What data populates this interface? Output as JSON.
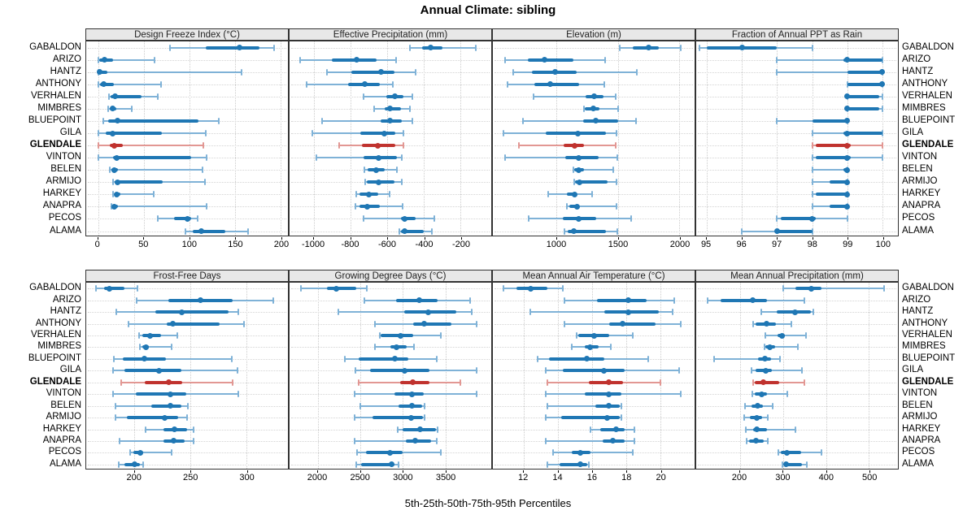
{
  "chart_data": {
    "type": "dot-whisker-trellis",
    "title": "Annual Climate: sibling",
    "caption": "5th-25th-50th-75th-95th Percentiles",
    "percentiles": [
      5,
      25,
      50,
      75,
      95
    ],
    "layout": {
      "rows": 2,
      "cols": 4,
      "grid": "dotted",
      "site_labels": "both-sides"
    },
    "highlight_site": "GLENDALE",
    "sites": [
      "GABALDON",
      "ARIZO",
      "HANTZ",
      "ANTHONY",
      "VERHALEN",
      "MIMBRES",
      "BLUEPOINT",
      "GILA",
      "GLENDALE",
      "VINTON",
      "BELEN",
      "ARMIJO",
      "HARKEY",
      "ANAPRA",
      "PECOS",
      "ALAMA"
    ],
    "colors": {
      "blue": "#1F77B4",
      "blue_light": "#7FB2D7",
      "red": "#C0322E",
      "red_light": "#E29793",
      "header_bg": "#E8E8E8",
      "grid": "#CCCCCC",
      "border": "#333333"
    },
    "panels": [
      {
        "title": "Design Freeze Index (°C)",
        "ticks": [
          0,
          50,
          100,
          150,
          200
        ],
        "domain": [
          -13,
          208
        ],
        "values": {
          "GABALDON": [
            79,
            118,
            155,
            177,
            193
          ],
          "ARIZO": [
            0,
            1,
            7,
            16,
            62
          ],
          "HANTZ": [
            0,
            1,
            2,
            10,
            157
          ],
          "ANTHONY": [
            0,
            2,
            6,
            17,
            69
          ],
          "VERHALEN": [
            12,
            14,
            19,
            48,
            65
          ],
          "MIMBRES": [
            11,
            13,
            16,
            20,
            37
          ],
          "BLUEPOINT": [
            6,
            11,
            21,
            110,
            132
          ],
          "GILA": [
            0,
            8,
            16,
            70,
            118
          ],
          "GLENDALE": [
            0,
            13,
            18,
            27,
            115
          ],
          "VINTON": [
            0,
            16,
            20,
            102,
            119
          ],
          "BELEN": [
            13,
            15,
            18,
            22,
            114
          ],
          "ARMIJO": [
            16,
            18,
            21,
            71,
            117
          ],
          "HARKEY": [
            16,
            18,
            20,
            24,
            61
          ],
          "ANAPRA": [
            15,
            17,
            18,
            22,
            119
          ],
          "PECOS": [
            65,
            83,
            98,
            102,
            109
          ],
          "ALAMA": [
            96,
            104,
            113,
            139,
            164
          ]
        }
      },
      {
        "title": "Effective Precipitation (mm)",
        "ticks": [
          -1000,
          -800,
          -600,
          -400,
          -200
        ],
        "domain": [
          -1132,
          -33
        ],
        "values": {
          "GABALDON": [
            -475,
            -409,
            -361,
            -300,
            -116
          ],
          "ARIZO": [
            -1075,
            -900,
            -765,
            -660,
            -550
          ],
          "HANTZ": [
            -930,
            -794,
            -632,
            -562,
            -444
          ],
          "ANTHONY": [
            -1039,
            -812,
            -720,
            -641,
            -571
          ],
          "VERHALEN": [
            -729,
            -606,
            -558,
            -510,
            -462
          ],
          "MIMBRES": [
            -672,
            -615,
            -584,
            -527,
            -475
          ],
          "BLUEPOINT": [
            -956,
            -637,
            -584,
            -519,
            -462
          ],
          "GILA": [
            -1009,
            -746,
            -615,
            -554,
            -510
          ],
          "GLENDALE": [
            -860,
            -737,
            -650,
            -554,
            -510
          ],
          "VINTON": [
            -987,
            -729,
            -645,
            -545,
            -519
          ],
          "BELEN": [
            -724,
            -707,
            -659,
            -615,
            -545
          ],
          "ARMIJO": [
            -720,
            -711,
            -645,
            -562,
            -519
          ],
          "HARKEY": [
            -768,
            -751,
            -702,
            -650,
            -589
          ],
          "ANAPRA": [
            -772,
            -751,
            -707,
            -641,
            -514
          ],
          "PECOS": [
            -729,
            -527,
            -505,
            -444,
            -344
          ],
          "ALAMA": [
            -532,
            -527,
            -505,
            -400,
            -357
          ]
        }
      },
      {
        "title": "Elevation (m)",
        "ticks": [
          1000,
          1500,
          2000
        ],
        "domain": [
          480,
          2125
        ],
        "values": {
          "GABALDON": [
            1513,
            1618,
            1750,
            1836,
            2013
          ],
          "ARIZO": [
            579,
            763,
            901,
            1138,
            1395
          ],
          "HANTZ": [
            645,
            796,
            987,
            1164,
            1651
          ],
          "ANTHONY": [
            599,
            816,
            947,
            1184,
            1388
          ],
          "VERHALEN": [
            809,
            1237,
            1309,
            1382,
            1480
          ],
          "MIMBRES": [
            1224,
            1230,
            1296,
            1349,
            1500
          ],
          "BLUEPOINT": [
            724,
            1217,
            1316,
            1500,
            1645
          ],
          "GILA": [
            566,
            908,
            1171,
            1401,
            1487
          ],
          "GLENDALE": [
            691,
            1059,
            1145,
            1224,
            1480
          ],
          "VINTON": [
            579,
            1072,
            1178,
            1342,
            1493
          ],
          "BELEN": [
            1138,
            1145,
            1178,
            1224,
            1461
          ],
          "ARMIJO": [
            1145,
            1151,
            1184,
            1414,
            1487
          ],
          "HARKEY": [
            928,
            1086,
            1145,
            1164,
            1290
          ],
          "ANAPRA": [
            1086,
            1105,
            1164,
            1178,
            1487
          ],
          "PECOS": [
            770,
            1053,
            1178,
            1322,
            1605
          ],
          "ALAMA": [
            1066,
            1092,
            1138,
            1401,
            1493
          ]
        }
      },
      {
        "title": "Fraction of Annual PPT as Rain",
        "ticks": [
          95,
          96,
          97,
          98,
          99,
          100
        ],
        "domain": [
          94.7,
          100.44
        ],
        "values": {
          "GABALDON": [
            94.8,
            95.0,
            96.0,
            97.0,
            98.0
          ],
          "ARIZO": [
            97.0,
            98.9,
            99.0,
            100.0,
            100.0
          ],
          "HANTZ": [
            97.0,
            99.0,
            100.0,
            100.0,
            100.0
          ],
          "ANTHONY": [
            99.0,
            99.0,
            100.0,
            100.0,
            100.0
          ],
          "VERHALEN": [
            99.0,
            99.0,
            99.0,
            99.9,
            100.0
          ],
          "MIMBRES": [
            99.0,
            99.0,
            99.0,
            99.9,
            100.0
          ],
          "BLUEPOINT": [
            97.0,
            98.0,
            99.0,
            99.0,
            99.0
          ],
          "GILA": [
            98.0,
            98.9,
            99.0,
            100.0,
            100.0
          ],
          "GLENDALE": [
            98.0,
            98.1,
            99.0,
            99.1,
            100.0
          ],
          "VINTON": [
            98.0,
            98.1,
            99.0,
            99.1,
            100.0
          ],
          "BELEN": [
            98.0,
            98.9,
            99.0,
            99.0,
            99.0
          ],
          "ARMIJO": [
            98.0,
            98.5,
            99.0,
            99.0,
            99.0
          ],
          "HARKEY": [
            98.0,
            98.1,
            99.0,
            99.0,
            99.0
          ],
          "ANAPRA": [
            98.0,
            98.5,
            99.0,
            99.0,
            99.0
          ],
          "PECOS": [
            97.0,
            97.1,
            98.0,
            98.1,
            99.0
          ],
          "ALAMA": [
            96.0,
            97.0,
            97.0,
            98.0,
            98.0
          ]
        }
      },
      {
        "title": "Frost-Free Days",
        "ticks": [
          200,
          250,
          300
        ],
        "domain": [
          157,
          337
        ],
        "values": {
          "GABALDON": [
            166,
            173,
            178,
            191,
            203
          ],
          "ARIZO": [
            202,
            230,
            259,
            288,
            324
          ],
          "HANTZ": [
            184,
            219,
            242,
            284,
            293
          ],
          "ANTHONY": [
            195,
            229,
            234,
            276,
            298
          ],
          "VERHALEN": [
            204,
            207,
            214,
            224,
            238
          ],
          "MIMBRES": [
            205,
            207,
            210,
            213,
            233
          ],
          "BLUEPOINT": [
            182,
            190,
            209,
            228,
            287
          ],
          "GILA": [
            181,
            191,
            222,
            242,
            292
          ],
          "GLENDALE": [
            188,
            209,
            231,
            243,
            288
          ],
          "VINTON": [
            181,
            201,
            232,
            246,
            293
          ],
          "BELEN": [
            183,
            215,
            232,
            242,
            248
          ],
          "ARMIJO": [
            183,
            193,
            227,
            239,
            247
          ],
          "HARKEY": [
            210,
            226,
            236,
            247,
            253
          ],
          "ANAPRA": [
            187,
            226,
            235,
            245,
            253
          ],
          "PECOS": [
            196,
            199,
            205,
            208,
            233
          ],
          "ALAMA": [
            186,
            191,
            200,
            205,
            208
          ]
        }
      },
      {
        "title": "Growing Degree Days (°C)",
        "ticks": [
          2000,
          2500,
          3000,
          3500
        ],
        "domain": [
          1668,
          4040
        ],
        "values": {
          "GABALDON": [
            1800,
            2105,
            2220,
            2455,
            2580
          ],
          "ARIZO": [
            2550,
            2920,
            3195,
            3405,
            3795
          ],
          "HANTZ": [
            2240,
            3015,
            3300,
            3630,
            3810
          ],
          "ANTHONY": [
            2675,
            3120,
            3250,
            3575,
            3870
          ],
          "VERHALEN": [
            2730,
            2740,
            2975,
            3120,
            3450
          ],
          "MIMBRES": [
            2675,
            2855,
            2930,
            3050,
            3130
          ],
          "BLUEPOINT": [
            2315,
            2485,
            2910,
            3060,
            3395
          ],
          "GILA": [
            2445,
            2615,
            3025,
            3310,
            3870
          ],
          "GLENDALE": [
            2480,
            2970,
            3120,
            3310,
            3680
          ],
          "VINTON": [
            2430,
            2900,
            3110,
            3250,
            3870
          ],
          "BELEN": [
            2500,
            2950,
            3110,
            3230,
            3255
          ],
          "ARMIJO": [
            2430,
            2645,
            3100,
            3240,
            3255
          ],
          "HARKEY": [
            2940,
            3000,
            3200,
            3385,
            3405
          ],
          "ANAPRA": [
            2430,
            3040,
            3150,
            3330,
            3400
          ],
          "PECOS": [
            2460,
            2570,
            2850,
            3000,
            3450
          ],
          "ALAMA": [
            2455,
            2505,
            2870,
            2905,
            2950
          ]
        }
      },
      {
        "title": "Mean Annual Air Temperature (°C)",
        "ticks": [
          12,
          14,
          16,
          18,
          20
        ],
        "domain": [
          10.2,
          22.0
        ],
        "values": {
          "GABALDON": [
            10.8,
            11.6,
            12.4,
            13.4,
            14.3
          ],
          "ARIZO": [
            14.4,
            16.3,
            18.1,
            19.2,
            20.8
          ],
          "HANTZ": [
            12.4,
            16.7,
            18.1,
            19.9,
            20.7
          ],
          "ANTHONY": [
            14.4,
            17.0,
            17.8,
            19.7,
            21.2
          ],
          "VERHALEN": [
            15.1,
            15.2,
            16.1,
            17.0,
            18.4
          ],
          "MIMBRES": [
            14.8,
            15.6,
            15.9,
            16.4,
            17.1
          ],
          "BLUEPOINT": [
            12.8,
            13.5,
            15.7,
            16.7,
            19.3
          ],
          "GILA": [
            13.3,
            14.3,
            16.7,
            17.9,
            21.1
          ],
          "GLENDALE": [
            13.4,
            15.8,
            17.0,
            17.8,
            20.0
          ],
          "VINTON": [
            13.3,
            15.6,
            17.0,
            17.7,
            21.2
          ],
          "BELEN": [
            13.4,
            16.2,
            17.0,
            17.6,
            17.7
          ],
          "ARMIJO": [
            13.3,
            14.2,
            16.9,
            17.6,
            17.7
          ],
          "HARKEY": [
            15.9,
            16.5,
            17.4,
            17.9,
            18.5
          ],
          "ANAPRA": [
            13.3,
            16.6,
            17.2,
            17.9,
            18.5
          ],
          "PECOS": [
            13.7,
            14.8,
            15.3,
            15.9,
            18.4
          ],
          "ALAMA": [
            13.4,
            14.1,
            15.3,
            15.7,
            15.8
          ]
        }
      },
      {
        "title": "Mean Annual Precipitation (mm)",
        "ticks": [
          200,
          300,
          400,
          500
        ],
        "domain": [
          99,
          567
        ],
        "values": {
          "GABALDON": [
            300,
            330,
            366,
            390,
            535
          ],
          "ARIZO": [
            125,
            155,
            230,
            264,
            350
          ],
          "HANTZ": [
            250,
            286,
            329,
            366,
            370
          ],
          "ANTHONY": [
            232,
            237,
            262,
            284,
            320
          ],
          "VERHALEN": [
            260,
            287,
            299,
            305,
            354
          ],
          "MIMBRES": [
            258,
            260,
            269,
            283,
            335
          ],
          "BLUEPOINT": [
            141,
            242,
            258,
            272,
            294
          ],
          "GILA": [
            227,
            236,
            260,
            274,
            345
          ],
          "GLENDALE": [
            232,
            235,
            254,
            292,
            350
          ],
          "VINTON": [
            230,
            235,
            250,
            264,
            310
          ],
          "BELEN": [
            213,
            227,
            242,
            254,
            277
          ],
          "ARMIJO": [
            211,
            224,
            240,
            252,
            266
          ],
          "HARKEY": [
            214,
            231,
            240,
            264,
            330
          ],
          "ANAPRA": [
            216,
            221,
            237,
            255,
            266
          ],
          "PECOS": [
            290,
            296,
            310,
            342,
            390
          ],
          "ALAMA": [
            299,
            302,
            308,
            345,
            355
          ]
        }
      }
    ]
  }
}
